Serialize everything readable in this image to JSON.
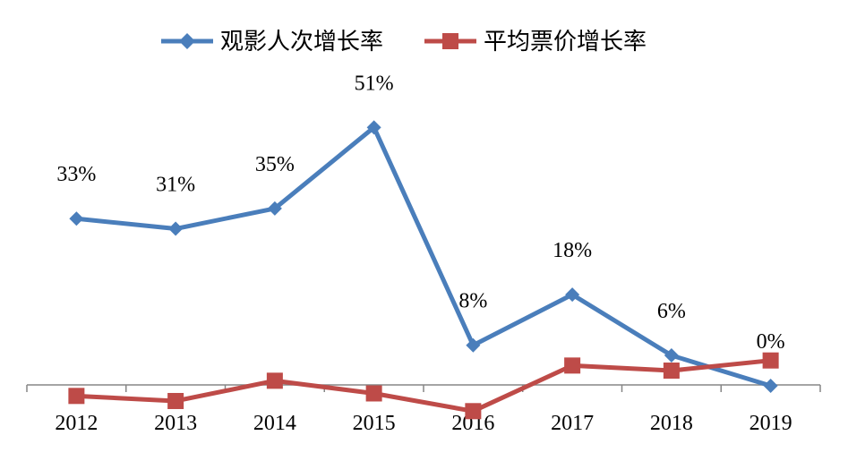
{
  "chart_data": {
    "type": "line",
    "categories": [
      "2012",
      "2013",
      "2014",
      "2015",
      "2016",
      "2017",
      "2018",
      "2019"
    ],
    "series": [
      {
        "name": "观影人次增长率",
        "values": [
          33,
          31,
          35,
          51,
          8,
          18,
          6,
          0
        ],
        "data_labels": [
          "33%",
          "31%",
          "35%",
          "51%",
          "8%",
          "18%",
          "6%",
          "0%"
        ],
        "color": "#4a7ebb",
        "marker": "diamond"
      },
      {
        "name": "平均票价增长率",
        "values": [
          -2,
          -3,
          1,
          -1.5,
          -5,
          4,
          3,
          5
        ],
        "color": "#be4b48",
        "marker": "square"
      }
    ],
    "ylim": [
      -6,
      55
    ],
    "grid": false,
    "legend": "top"
  }
}
